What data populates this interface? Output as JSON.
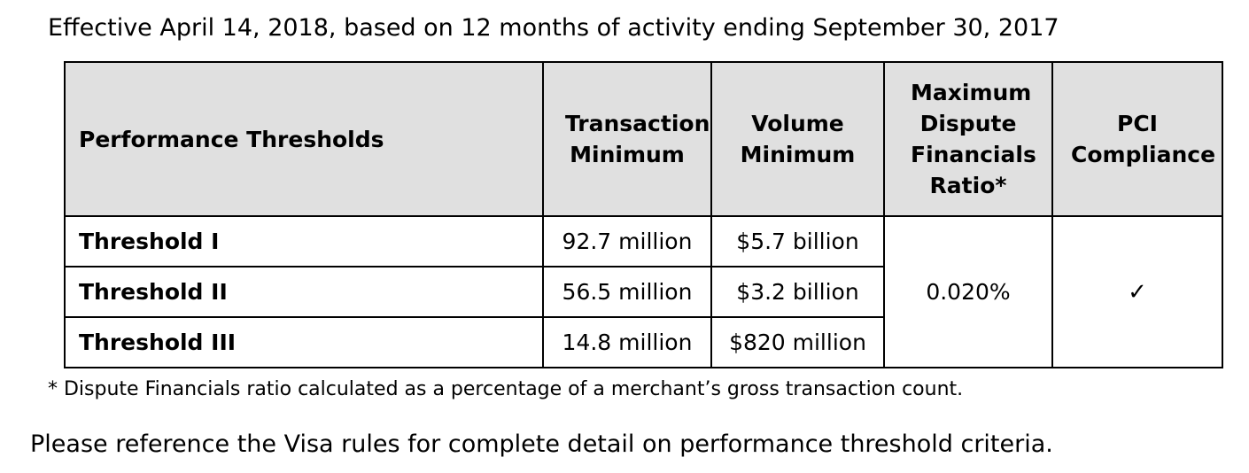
{
  "intro_text": "Effective April 14, 2018, based on 12 months of activity ending September 30, 2017",
  "table": {
    "headers": [
      "Performance Thresholds",
      "Transaction Minimum",
      "Volume Minimum",
      "Maximum Dispute Financials Ratio*",
      "PCI Compliance"
    ],
    "rows": [
      {
        "label": "Threshold I",
        "transaction_minimum": "92.7 million",
        "volume_minimum": "$5.7 billion"
      },
      {
        "label": "Threshold II",
        "transaction_minimum": "56.5 million",
        "volume_minimum": "$3.2 billion"
      },
      {
        "label": "Threshold III",
        "transaction_minimum": "14.8 million",
        "volume_minimum": "$820 million"
      }
    ],
    "max_dispute_ratio": "0.020%",
    "pci_compliance_mark": "✓"
  },
  "footnote": "* Dispute Financials ratio calculated as a percentage of a merchant’s gross transaction count.",
  "reference_text": "Please reference the Visa rules for complete detail on performance threshold criteria."
}
